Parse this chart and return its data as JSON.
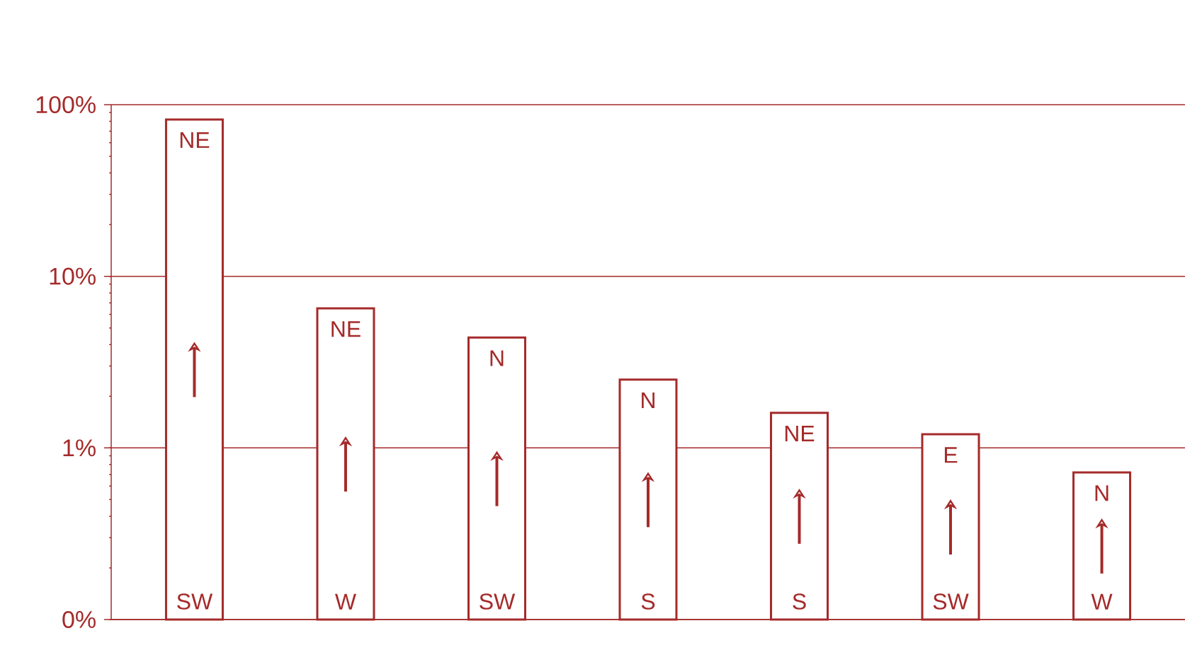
{
  "chart_data": {
    "type": "bar",
    "log": "y",
    "grid": "y",
    "color": "#a52a2a",
    "categories": [
      "SW",
      "W",
      "SW",
      "S",
      "S",
      "SW",
      "W"
    ],
    "values": [
      82,
      6.5,
      4.4,
      2.5,
      1.6,
      1.2,
      0.72
    ],
    "annotations": [
      "NE",
      "NE",
      "N",
      "N",
      "NE",
      "E",
      "N"
    ],
    "ylim": [
      0.1,
      100
    ],
    "yticks": [
      {
        "value": 0.1,
        "label": "0%"
      },
      {
        "value": 1,
        "label": "1%"
      },
      {
        "value": 10,
        "label": "10%"
      },
      {
        "value": 100,
        "label": "100%"
      }
    ]
  }
}
